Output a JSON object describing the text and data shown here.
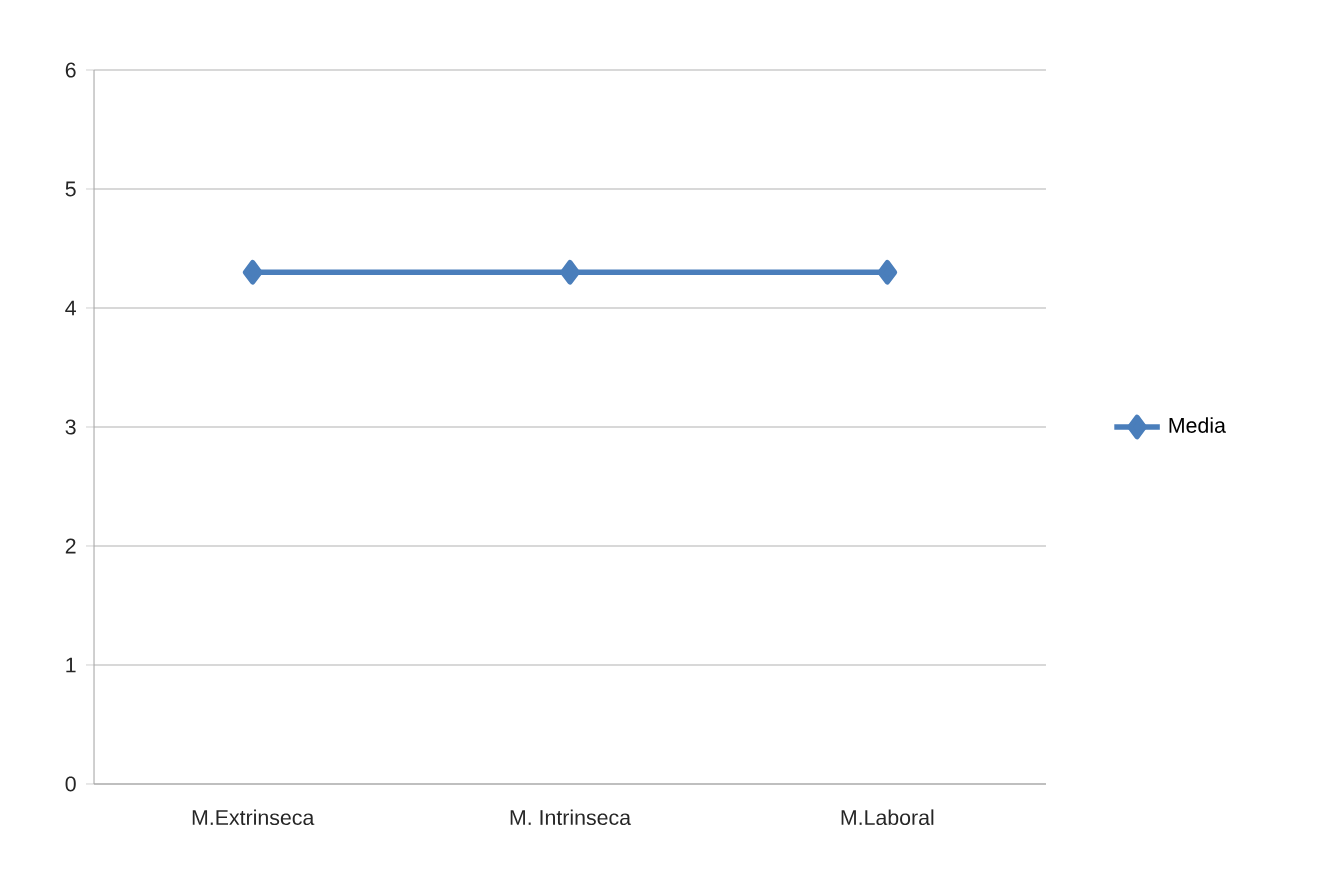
{
  "chart_data": {
    "type": "line",
    "categories": [
      "M.Extrinseca",
      "M. Intrinseca",
      "M.Laboral"
    ],
    "series": [
      {
        "name": "Media",
        "color": "#4a7ebb",
        "values": [
          4.3,
          4.3,
          4.3
        ]
      }
    ],
    "ylim": [
      0,
      6
    ],
    "yticks": [
      0,
      1,
      2,
      3,
      4,
      5,
      6
    ],
    "grid": "y",
    "legend": "right",
    "marker": "diamond",
    "line_style": "solid"
  }
}
